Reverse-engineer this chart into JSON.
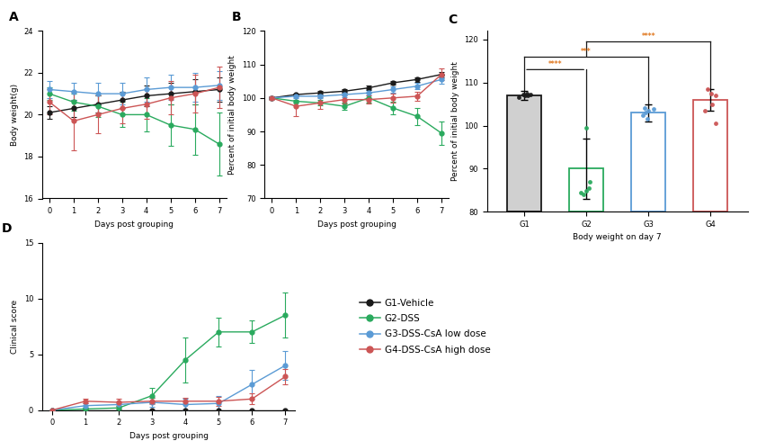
{
  "days": [
    0,
    1,
    2,
    3,
    4,
    5,
    6,
    7
  ],
  "panel_A": {
    "title": "A",
    "xlabel": "Days post grouping",
    "ylabel": "Body weight(g)",
    "ylim": [
      16,
      24
    ],
    "yticks": [
      16,
      18,
      20,
      22,
      24
    ],
    "G1": {
      "mean": [
        20.1,
        20.3,
        20.5,
        20.7,
        20.9,
        21.0,
        21.1,
        21.2
      ],
      "err": [
        0.3,
        0.4,
        0.4,
        0.4,
        0.5,
        0.5,
        0.6,
        0.6
      ]
    },
    "G2": {
      "mean": [
        21.0,
        20.6,
        20.4,
        20.0,
        20.0,
        19.5,
        19.3,
        18.6
      ],
      "err": [
        0.3,
        0.4,
        0.5,
        0.6,
        0.8,
        1.0,
        1.2,
        1.5
      ]
    },
    "G3": {
      "mean": [
        21.2,
        21.1,
        21.0,
        21.0,
        21.2,
        21.3,
        21.3,
        21.4
      ],
      "err": [
        0.4,
        0.4,
        0.5,
        0.5,
        0.6,
        0.6,
        0.7,
        0.7
      ]
    },
    "G4": {
      "mean": [
        20.6,
        19.7,
        20.0,
        20.3,
        20.5,
        20.8,
        21.0,
        21.3
      ],
      "err": [
        0.6,
        1.4,
        0.9,
        0.7,
        0.7,
        0.8,
        0.9,
        1.0
      ]
    }
  },
  "panel_B": {
    "title": "B",
    "xlabel": "Days post grouping",
    "ylabel": "Percent of initial body weight",
    "ylim": [
      70,
      120
    ],
    "yticks": [
      70,
      80,
      90,
      100,
      110,
      120
    ],
    "G1": {
      "mean": [
        100,
        101.0,
        101.5,
        102.0,
        103.0,
        104.5,
        105.5,
        107.0
      ],
      "err": [
        0.3,
        0.4,
        0.5,
        0.5,
        0.6,
        0.6,
        0.7,
        0.8
      ]
    },
    "G2": {
      "mean": [
        100,
        99.0,
        98.5,
        97.5,
        100.0,
        97.0,
        94.5,
        89.5
      ],
      "err": [
        0.3,
        0.5,
        0.8,
        1.0,
        1.5,
        2.0,
        2.5,
        3.5
      ]
    },
    "G3": {
      "mean": [
        100,
        100.5,
        100.5,
        101.0,
        101.5,
        102.5,
        103.5,
        105.5
      ],
      "err": [
        0.4,
        0.5,
        0.6,
        0.7,
        0.8,
        0.9,
        1.0,
        1.2
      ]
    },
    "G4": {
      "mean": [
        100,
        97.5,
        98.5,
        99.5,
        99.5,
        100.0,
        100.5,
        107.0
      ],
      "err": [
        0.5,
        3.0,
        1.8,
        1.2,
        1.2,
        1.3,
        1.4,
        1.8
      ]
    }
  },
  "panel_C": {
    "title": "C",
    "xlabel": "Body weight on day 7",
    "ylabel": "Percent of initial body weight",
    "ylim": [
      80,
      122
    ],
    "yticks": [
      80,
      90,
      100,
      110,
      120
    ],
    "groups": [
      "G1",
      "G2",
      "G3",
      "G4"
    ],
    "bar_means": [
      107.0,
      90.0,
      103.0,
      106.0
    ],
    "bar_errs": [
      1.0,
      7.0,
      2.0,
      2.5
    ],
    "bar_facecolors": [
      "white",
      "white",
      "white",
      "white"
    ],
    "bar_edgecolors": [
      "#1a1a1a",
      "#2aaa5e",
      "#5b9bd5",
      "#cc5555"
    ],
    "dot_colors": [
      "#1a1a1a",
      "#2aaa5e",
      "#5b9bd5",
      "#cc5555"
    ],
    "dots_G1": [
      106.5,
      107.0,
      107.2,
      107.5,
      107.3,
      107.1
    ],
    "dots_G2": [
      99.5,
      84.5,
      84.0,
      84.8,
      85.5,
      87.0
    ],
    "dots_G3": [
      101.5,
      102.5,
      103.0,
      103.8,
      104.0,
      103.5
    ],
    "dots_G4": [
      100.5,
      103.5,
      105.0,
      107.0,
      108.5,
      107.5
    ]
  },
  "panel_D": {
    "title": "D",
    "xlabel": "Days post grouping",
    "ylabel": "Clinical score",
    "ylim": [
      0,
      15
    ],
    "yticks": [
      0,
      5,
      10,
      15
    ],
    "G1": {
      "mean": [
        0,
        0,
        0,
        0,
        0,
        0,
        0,
        0
      ],
      "err": [
        0,
        0,
        0,
        0,
        0,
        0,
        0,
        0
      ]
    },
    "G2": {
      "mean": [
        0,
        0.1,
        0.2,
        1.3,
        4.5,
        7.0,
        7.0,
        8.5
      ],
      "err": [
        0,
        0.1,
        0.2,
        0.7,
        2.0,
        1.3,
        1.0,
        2.0
      ]
    },
    "G3": {
      "mean": [
        0,
        0.4,
        0.5,
        0.7,
        0.5,
        0.6,
        2.3,
        4.0
      ],
      "err": [
        0,
        0.2,
        0.3,
        0.4,
        0.5,
        0.7,
        1.3,
        1.3
      ]
    },
    "G4": {
      "mean": [
        0,
        0.8,
        0.7,
        0.8,
        0.8,
        0.8,
        1.0,
        3.0
      ],
      "err": [
        0,
        0.2,
        0.3,
        0.3,
        0.3,
        0.4,
        0.5,
        0.7
      ]
    }
  },
  "colors": {
    "G1": "#1a1a1a",
    "G2": "#2aaa5e",
    "G3": "#5b9bd5",
    "G4": "#cc5555"
  },
  "legend_labels": [
    "G1-Vehicle",
    "G2-DSS",
    "G3-DSS-CsA low dose",
    "G4-DSS-CsA high dose"
  ],
  "significance_color": "#e07820",
  "sig_line_color": "#1a1a1a"
}
